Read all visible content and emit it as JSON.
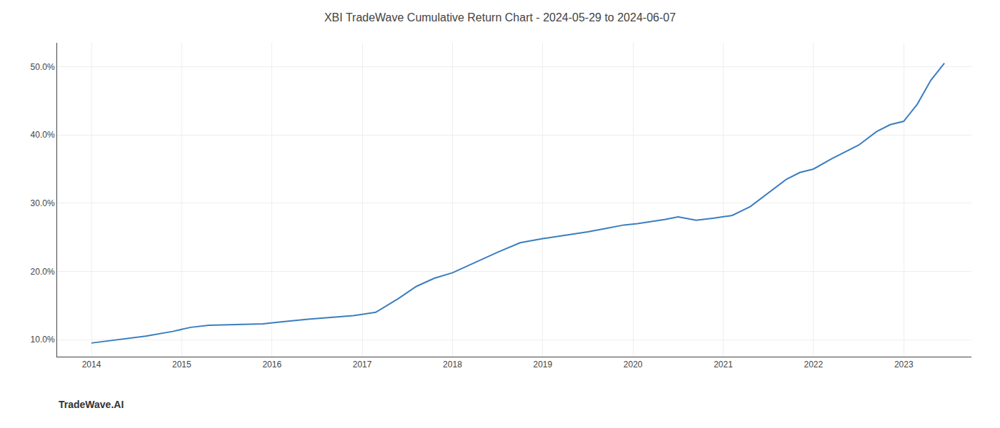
{
  "chart_data": {
    "type": "line",
    "title": "XBI TradeWave Cumulative Return Chart - 2024-05-29 to 2024-06-07",
    "annotations": [
      "TradeWave.AI"
    ],
    "x": [
      2014.0,
      2014.3,
      2014.6,
      2014.9,
      2015.1,
      2015.3,
      2015.6,
      2015.9,
      2016.1,
      2016.4,
      2016.7,
      2016.9,
      2017.15,
      2017.4,
      2017.6,
      2017.8,
      2018.0,
      2018.2,
      2018.5,
      2018.75,
      2019.0,
      2019.2,
      2019.5,
      2019.7,
      2019.9,
      2020.05,
      2020.2,
      2020.35,
      2020.5,
      2020.7,
      2020.9,
      2021.1,
      2021.3,
      2021.5,
      2021.7,
      2021.85,
      2022.0,
      2022.2,
      2022.5,
      2022.7,
      2022.85,
      2023.0,
      2023.15,
      2023.3,
      2023.45
    ],
    "values": [
      9.5,
      10.0,
      10.5,
      11.2,
      11.8,
      12.1,
      12.2,
      12.3,
      12.6,
      13.0,
      13.3,
      13.5,
      14.0,
      16.0,
      17.8,
      19.0,
      19.8,
      21.0,
      22.8,
      24.2,
      24.8,
      25.2,
      25.8,
      26.3,
      26.8,
      27.0,
      27.3,
      27.6,
      28.0,
      27.5,
      27.8,
      28.2,
      29.5,
      31.5,
      33.5,
      34.5,
      35.0,
      36.5,
      38.5,
      40.5,
      41.5,
      42.0,
      44.5,
      48.0,
      50.5
    ],
    "color": "#3a7ebf",
    "xlim": [
      2013.62,
      2023.75
    ],
    "ylim": [
      7.5,
      53.5
    ],
    "xticks": [
      2014,
      2015,
      2016,
      2017,
      2018,
      2019,
      2020,
      2021,
      2022,
      2023
    ],
    "yticks": [
      {
        "value": 10.0,
        "label": "10.0%"
      },
      {
        "value": 20.0,
        "label": "20.0%"
      },
      {
        "value": 30.0,
        "label": "30.0%"
      },
      {
        "value": 40.0,
        "label": "40.0%"
      },
      {
        "value": 50.0,
        "label": "50.0%"
      }
    ],
    "grid": true
  }
}
